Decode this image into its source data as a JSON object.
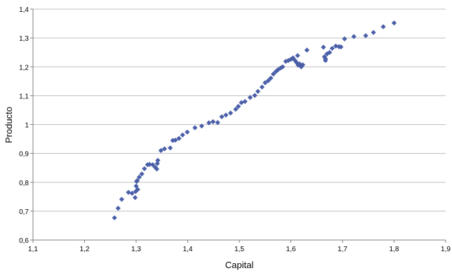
{
  "chart_data": {
    "type": "scatter",
    "xlabel": "Capital",
    "ylabel": "Producto",
    "xlim": [
      1.1,
      1.9
    ],
    "ylim": [
      0.6,
      1.4
    ],
    "x_ticks": [
      "1,1",
      "1,2",
      "1,3",
      "1,4",
      "1,5",
      "1,6",
      "1,7",
      "1,8",
      "1,9"
    ],
    "y_ticks": [
      "0,6",
      "0,7",
      "0,8",
      "0,9",
      "1",
      "1,1",
      "1,2",
      "1,3",
      "1,4"
    ],
    "grid": "horizontal",
    "legend": "none",
    "marker_color": "#4a5fa8",
    "series": [
      {
        "x": [
          1.258,
          1.265,
          1.272,
          1.285,
          1.292,
          1.298,
          1.299,
          1.3,
          1.301,
          1.302,
          1.303,
          1.306,
          1.311,
          1.316,
          1.322,
          1.326,
          1.332,
          1.337,
          1.34,
          1.341,
          1.342,
          1.348,
          1.355,
          1.366,
          1.371,
          1.376,
          1.383,
          1.39,
          1.399,
          1.414,
          1.427,
          1.441,
          1.449,
          1.458,
          1.466,
          1.474,
          1.483,
          1.493,
          1.498,
          1.504,
          1.511,
          1.521,
          1.53,
          1.536,
          1.544,
          1.55,
          1.556,
          1.561,
          1.566,
          1.571,
          1.575,
          1.58,
          1.584,
          1.59,
          1.595,
          1.6,
          1.604,
          1.608,
          1.611,
          1.614,
          1.617,
          1.62,
          1.623,
          1.631,
          1.663,
          1.665,
          1.667,
          1.67,
          1.675,
          1.68,
          1.687,
          1.693,
          1.697,
          1.704,
          1.722,
          1.745,
          1.76,
          1.779,
          1.8,
          1.613,
          1.667
        ],
        "y": [
          0.677,
          0.71,
          0.741,
          0.765,
          0.762,
          0.747,
          0.768,
          0.787,
          0.803,
          0.806,
          0.775,
          0.818,
          0.829,
          0.847,
          0.861,
          0.862,
          0.861,
          0.852,
          0.846,
          0.865,
          0.876,
          0.91,
          0.916,
          0.919,
          0.945,
          0.946,
          0.952,
          0.964,
          0.974,
          0.989,
          0.995,
          1.006,
          1.01,
          1.007,
          1.027,
          1.033,
          1.04,
          1.053,
          1.063,
          1.076,
          1.08,
          1.094,
          1.101,
          1.115,
          1.13,
          1.145,
          1.152,
          1.161,
          1.175,
          1.184,
          1.19,
          1.196,
          1.2,
          1.219,
          1.222,
          1.226,
          1.231,
          1.222,
          1.215,
          1.206,
          1.21,
          1.2,
          1.207,
          1.258,
          1.268,
          1.235,
          1.222,
          1.245,
          1.25,
          1.264,
          1.272,
          1.27,
          1.269,
          1.297,
          1.305,
          1.308,
          1.319,
          1.339,
          1.352,
          1.239,
          1.228
        ]
      }
    ]
  }
}
